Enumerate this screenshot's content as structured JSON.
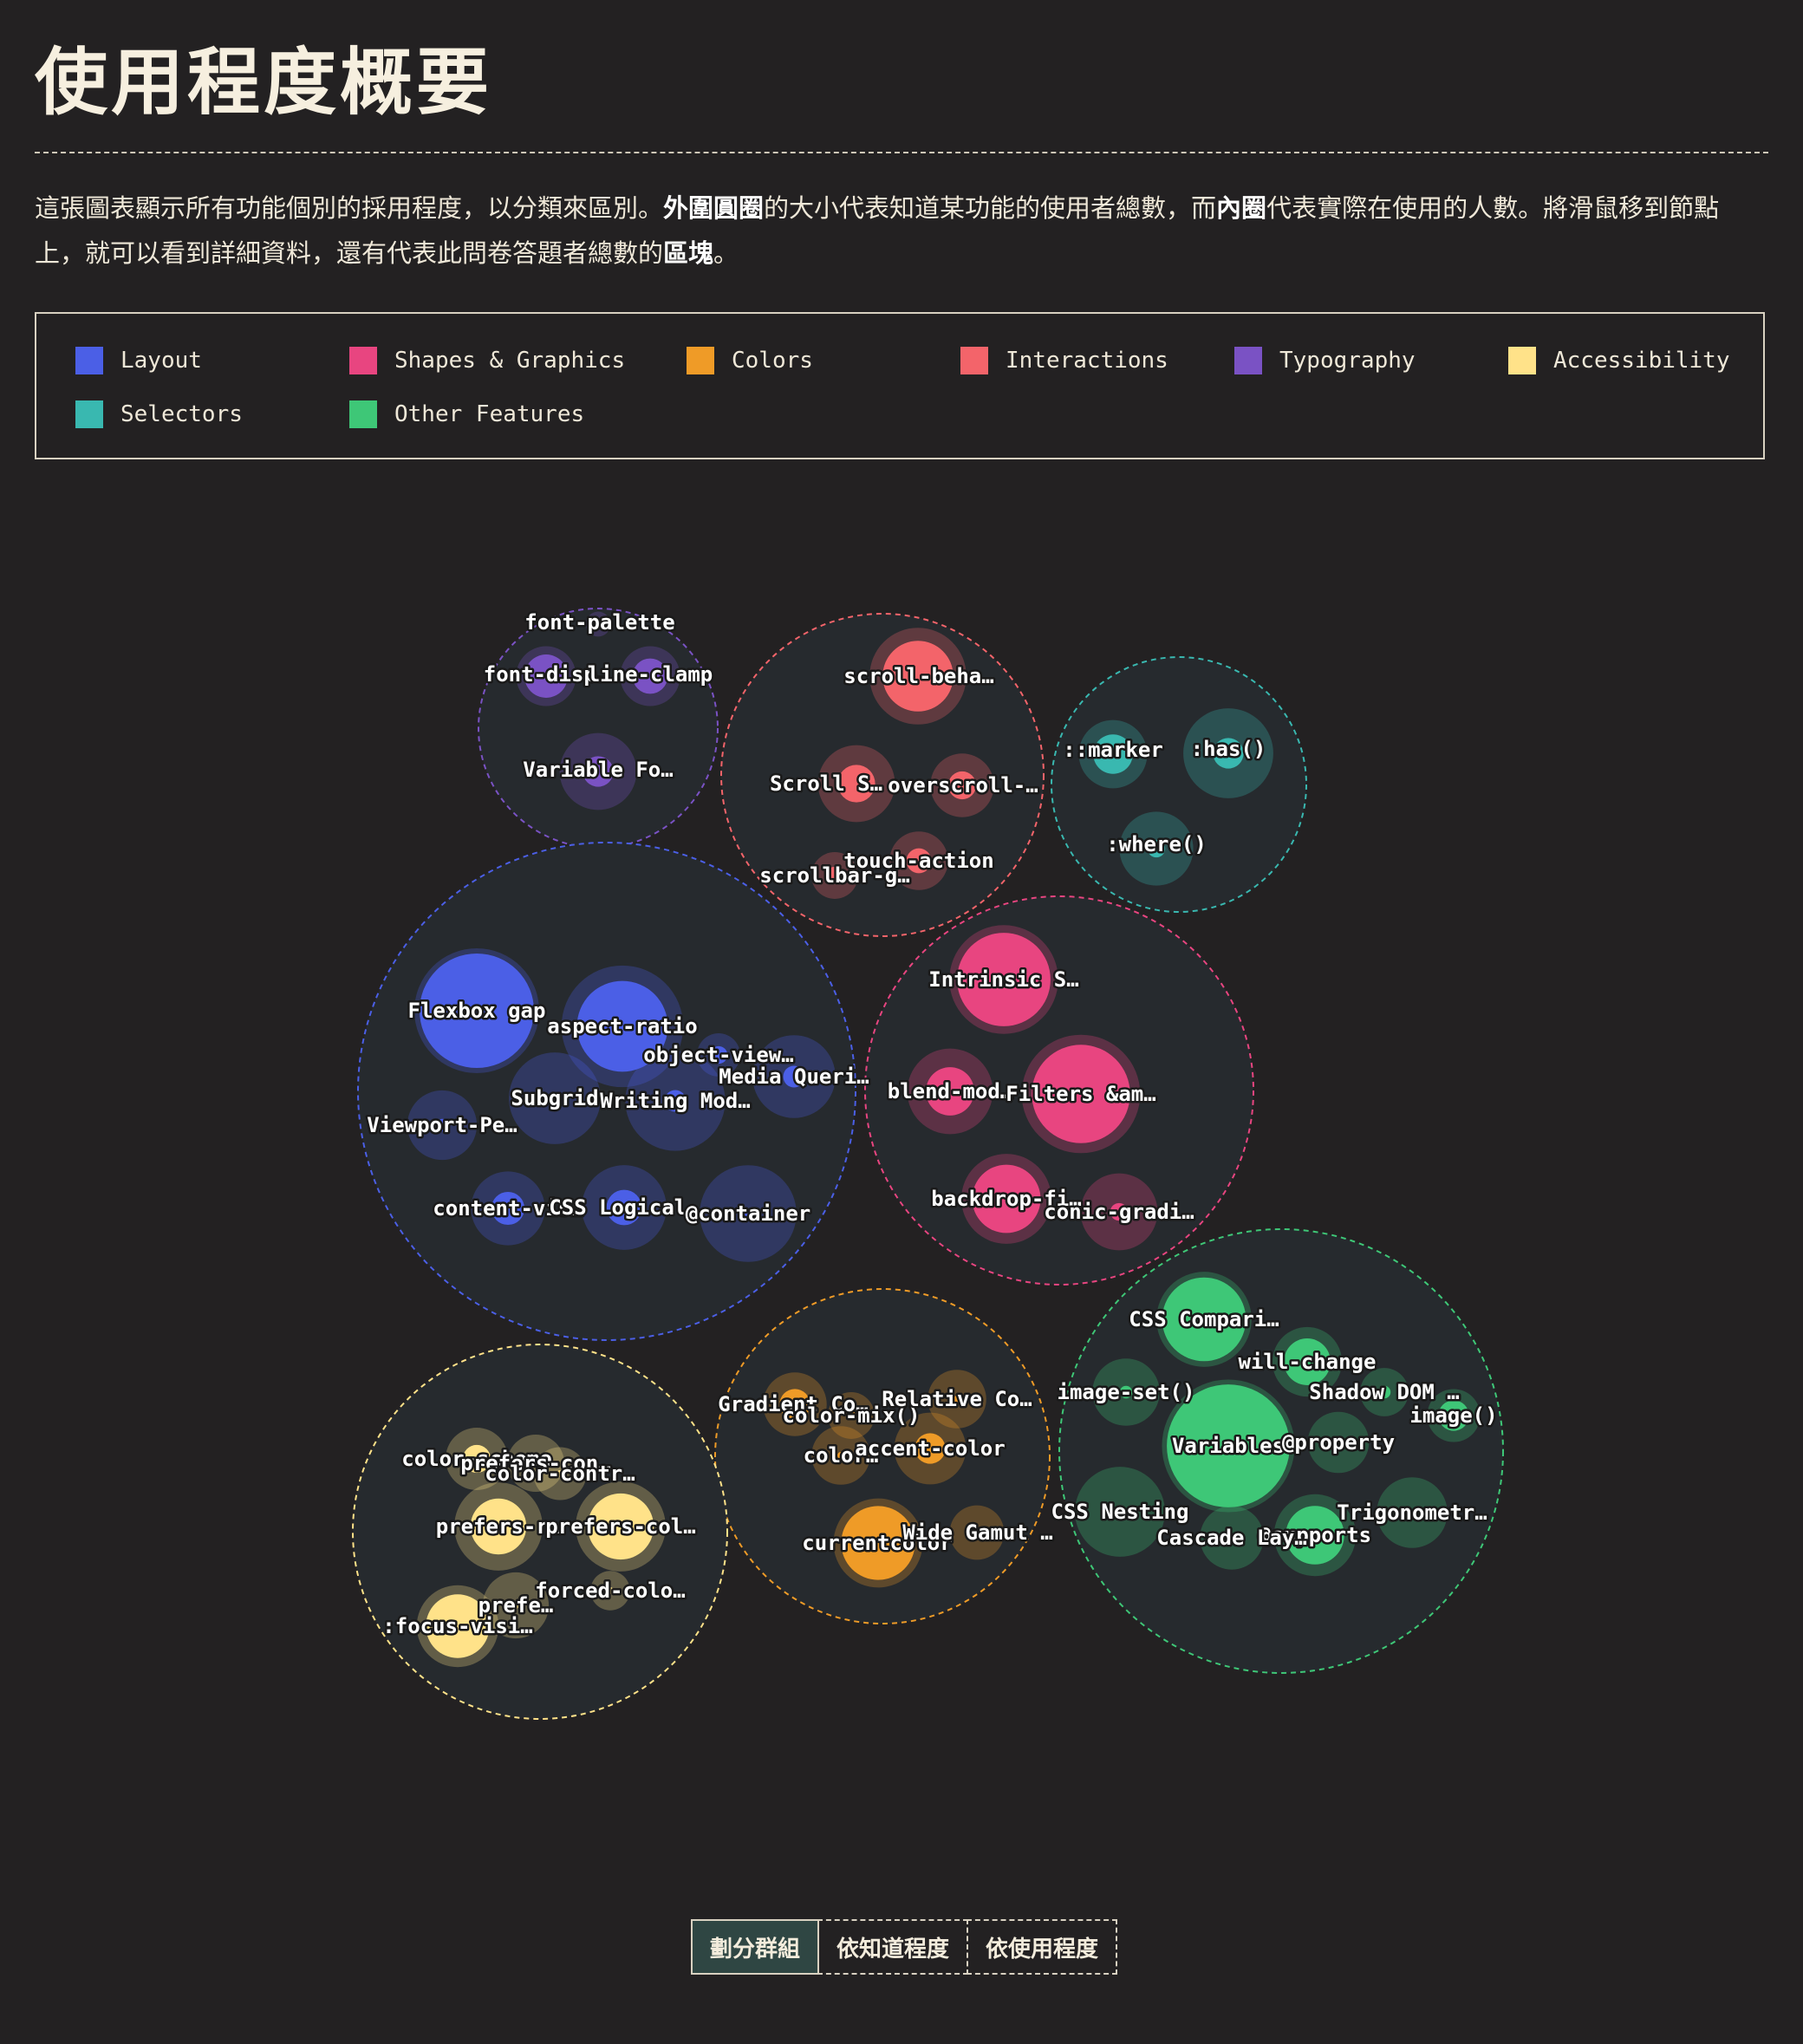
{
  "page": {
    "title": "使用程度概要",
    "description_parts": [
      {
        "text": "這張圖表顯示所有功能個別的採用程度，以分類來區別。",
        "bold": false
      },
      {
        "text": "外圍圓圈",
        "bold": true
      },
      {
        "text": "的大小代表知道某功能的使用者總數，而",
        "bold": false
      },
      {
        "text": "內圈",
        "bold": true
      },
      {
        "text": "代表實際在使用的人數。將滑鼠移到節點上，就可以看到詳細資料，還有代表此問卷答題者總數的",
        "bold": false
      },
      {
        "text": "區塊",
        "bold": true
      },
      {
        "text": "。",
        "bold": false
      }
    ]
  },
  "legend": [
    {
      "label": "Layout",
      "color": "#4b5fe6"
    },
    {
      "label": "Shapes & Graphics",
      "color": "#e84580"
    },
    {
      "label": "Colors",
      "color": "#ef9b27"
    },
    {
      "label": "Interactions",
      "color": "#f3646a"
    },
    {
      "label": "Typography",
      "color": "#7a52c4"
    },
    {
      "label": "Accessibility",
      "color": "#ffe289"
    },
    {
      "label": "Selectors",
      "color": "#39b8b0"
    },
    {
      "label": "Other Features",
      "color": "#3ec777"
    }
  ],
  "view_toggle": [
    {
      "label": "劃分群組",
      "active": true
    },
    {
      "label": "依知道程度",
      "active": false
    },
    {
      "label": "依使用程度",
      "active": false
    }
  ],
  "chart_data": {
    "type": "bubble",
    "note_values": "relative area estimates: awareness = outer circle, usage = inner circle",
    "groups": [
      {
        "name": "Typography",
        "color": "#7a52c4",
        "features": [
          {
            "label": "font-palette",
            "awareness": 4,
            "usage": 0.5
          },
          {
            "label": "font-disp…",
            "awareness": 23,
            "usage": 12
          },
          {
            "label": "line-clamp",
            "awareness": 23,
            "usage": 8
          },
          {
            "label": "Variable Fo…",
            "awareness": 38,
            "usage": 6
          }
        ]
      },
      {
        "name": "Interactions",
        "color": "#f3646a",
        "features": [
          {
            "label": "scroll-beha…",
            "awareness": 60,
            "usage": 32
          },
          {
            "label": "Scroll S…",
            "awareness": 38,
            "usage": 9
          },
          {
            "label": "overscroll-…",
            "awareness": 26,
            "usage": 5
          },
          {
            "label": "touch-action",
            "awareness": 22,
            "usage": 4
          },
          {
            "label": "scrollbar-g…",
            "awareness": 14,
            "usage": 2
          }
        ]
      },
      {
        "name": "Selectors",
        "color": "#39b8b0",
        "features": [
          {
            "label": "::marker",
            "awareness": 30,
            "usage": 10
          },
          {
            "label": ":has()",
            "awareness": 52,
            "usage": 6
          },
          {
            "label": ":where()",
            "awareness": 35,
            "usage": 2
          }
        ]
      },
      {
        "name": "Layout",
        "color": "#4b5fe6",
        "features": [
          {
            "label": "Flexbox gap",
            "awareness": 100,
            "usage": 84
          },
          {
            "label": "aspect-ratio",
            "awareness": 95,
            "usage": 53
          },
          {
            "label": "object-view…",
            "awareness": 12,
            "usage": 2
          },
          {
            "label": "Media Queri…",
            "awareness": 44,
            "usage": 3
          },
          {
            "label": "Subgrid",
            "awareness": 54,
            "usage": 1
          },
          {
            "label": "Writing Mod…",
            "awareness": 64,
            "usage": 3
          },
          {
            "label": "Viewport-Pe…",
            "awareness": 31,
            "usage": 1
          },
          {
            "label": "content-vis…",
            "awareness": 35,
            "usage": 7
          },
          {
            "label": "CSS Logical…",
            "awareness": 46,
            "usage": 8
          },
          {
            "label": "@container",
            "awareness": 60,
            "usage": 0.3
          }
        ]
      },
      {
        "name": "Shapes & Graphics",
        "color": "#e84580",
        "features": [
          {
            "label": "Intrinsic S…",
            "awareness": 76,
            "usage": 56
          },
          {
            "label": "blend-mod…",
            "awareness": 47,
            "usage": 15
          },
          {
            "label": "Filters &am…",
            "awareness": 90,
            "usage": 62
          },
          {
            "label": "backdrop-fi…",
            "awareness": 52,
            "usage": 30
          },
          {
            "label": "conic-gradi…",
            "awareness": 38,
            "usage": 2
          }
        ]
      },
      {
        "name": "Colors",
        "color": "#ef9b27",
        "features": [
          {
            "label": "Gradient Co…",
            "awareness": 26,
            "usage": 6
          },
          {
            "label": "color-mix()",
            "awareness": 14,
            "usage": 0.5
          },
          {
            "label": "Relative Co…",
            "awareness": 22,
            "usage": 0.3
          },
          {
            "label": "color…",
            "awareness": 22,
            "usage": 0.3
          },
          {
            "label": "accent-color",
            "awareness": 33,
            "usage": 6
          },
          {
            "label": "currentcolor",
            "awareness": 51,
            "usage": 35
          },
          {
            "label": "Wide Gamut …",
            "awareness": 19,
            "usage": 0.3
          }
        ]
      },
      {
        "name": "Accessibility",
        "color": "#ffe289",
        "features": [
          {
            "label": "color-scheme",
            "awareness": 25,
            "usage": 5
          },
          {
            "label": "prefers-con…",
            "awareness": 21,
            "usage": 0.5
          },
          {
            "label": "color-contr…",
            "awareness": 18,
            "usage": 0.3
          },
          {
            "label": "prefers-r…",
            "awareness": 50,
            "usage": 20
          },
          {
            "label": "prefers-col…",
            "awareness": 52,
            "usage": 28
          },
          {
            "label": "prefe…",
            "awareness": 28,
            "usage": 0.3
          },
          {
            "label": "forced-colo…",
            "awareness": 10,
            "usage": 0.3
          },
          {
            "label": ":focus-visi…",
            "awareness": 43,
            "usage": 26
          }
        ]
      },
      {
        "name": "Other Features",
        "color": "#3ec777",
        "features": [
          {
            "label": "CSS Compari…",
            "awareness": 58,
            "usage": 45
          },
          {
            "label": "will-change",
            "awareness": 31,
            "usage": 14
          },
          {
            "label": "Shadow DOM …",
            "awareness": 15,
            "usage": 1
          },
          {
            "label": "image-set()",
            "awareness": 29,
            "usage": 1
          },
          {
            "label": "image()",
            "awareness": 18,
            "usage": 6
          },
          {
            "label": "Variables",
            "awareness": 113,
            "usage": 97
          },
          {
            "label": "@property",
            "awareness": 24,
            "usage": 0.3
          },
          {
            "label": "CSS Nesting",
            "awareness": 52,
            "usage": 0.5
          },
          {
            "label": "Trigonometr…",
            "awareness": 32,
            "usage": 0.3
          },
          {
            "label": "@supports",
            "awareness": 43,
            "usage": 22
          },
          {
            "label": "Cascade Lay…",
            "awareness": 26,
            "usage": 0.3
          }
        ]
      }
    ]
  }
}
